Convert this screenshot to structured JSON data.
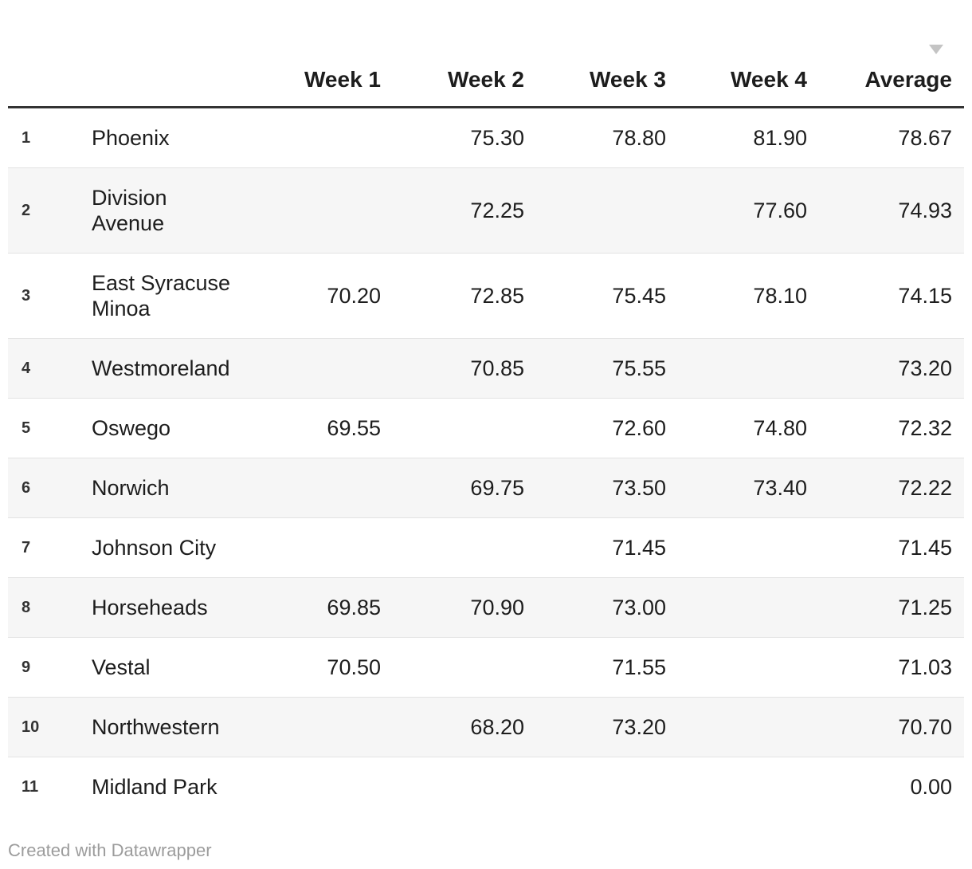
{
  "chart_data": {
    "type": "table",
    "sort": {
      "column": "Average",
      "direction": "descending"
    },
    "columns": [
      "Week 1",
      "Week 2",
      "Week 3",
      "Week 4",
      "Average"
    ],
    "rows": [
      {
        "rank": "1",
        "name": "Phoenix",
        "values": [
          "",
          "75.30",
          "78.80",
          "81.90",
          "78.67"
        ]
      },
      {
        "rank": "2",
        "name": "Division\nAvenue",
        "values": [
          "",
          "72.25",
          "",
          "77.60",
          "74.93"
        ]
      },
      {
        "rank": "3",
        "name": "East Syracuse\nMinoa",
        "values": [
          "70.20",
          "72.85",
          "75.45",
          "78.10",
          "74.15"
        ]
      },
      {
        "rank": "4",
        "name": "Westmoreland",
        "values": [
          "",
          "70.85",
          "75.55",
          "",
          "73.20"
        ]
      },
      {
        "rank": "5",
        "name": "Oswego",
        "values": [
          "69.55",
          "",
          "72.60",
          "74.80",
          "72.32"
        ]
      },
      {
        "rank": "6",
        "name": "Norwich",
        "values": [
          "",
          "69.75",
          "73.50",
          "73.40",
          "72.22"
        ]
      },
      {
        "rank": "7",
        "name": "Johnson City",
        "values": [
          "",
          "",
          "71.45",
          "",
          "71.45"
        ]
      },
      {
        "rank": "8",
        "name": "Horseheads",
        "values": [
          "69.85",
          "70.90",
          "73.00",
          "",
          "71.25"
        ]
      },
      {
        "rank": "9",
        "name": "Vestal",
        "values": [
          "70.50",
          "",
          "71.55",
          "",
          "71.03"
        ]
      },
      {
        "rank": "10",
        "name": "Northwestern",
        "values": [
          "",
          "68.20",
          "73.20",
          "",
          "70.70"
        ]
      },
      {
        "rank": "11",
        "name": "Midland Park",
        "values": [
          "",
          "",
          "",
          "",
          "0.00"
        ]
      }
    ]
  },
  "footer": {
    "attribution": "Created with Datawrapper"
  },
  "icons": {
    "sort_descending": "triangle-down"
  },
  "colors": {
    "header_rule": "#333333",
    "row_separator": "#e3e3e3",
    "zebra_stripe": "#f6f6f6",
    "body_text": "#1d1d1d",
    "rank_text": "#333333",
    "footer_text": "#9c9c9c",
    "sort_arrow": "#c4c4c4"
  }
}
